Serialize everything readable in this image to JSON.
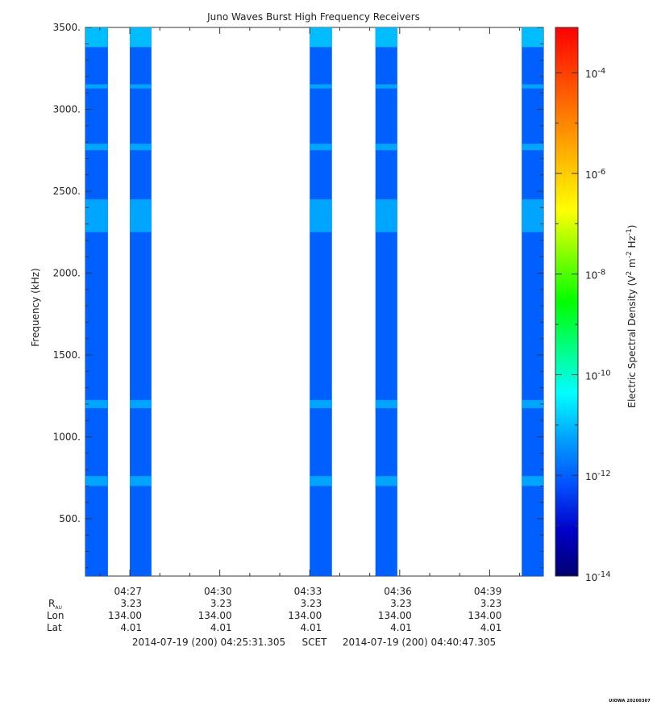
{
  "chart_data": {
    "type": "heatmap",
    "title": "Juno Waves Burst High Frequency Receivers",
    "ylabel": "Frequency (kHz)",
    "ylim": [
      150,
      3500
    ],
    "yticks": [
      500,
      1000,
      1500,
      2000,
      2500,
      3000,
      3500
    ],
    "ytick_labels": [
      "500.",
      "1000.",
      "1500.",
      "2000.",
      "2500.",
      "3000.",
      "3500."
    ],
    "xrange_minutes": [
      0,
      15.27
    ],
    "xticks": [
      {
        "t": 1.48,
        "label": "04:27",
        "rau": "3.23",
        "lon": "134.00",
        "lat": "4.01"
      },
      {
        "t": 4.48,
        "label": "04:30",
        "rau": "3.23",
        "lon": "134.00",
        "lat": "4.01"
      },
      {
        "t": 7.48,
        "label": "04:33",
        "rau": "3.23",
        "lon": "134.00",
        "lat": "4.01"
      },
      {
        "t": 10.48,
        "label": "04:36",
        "rau": "3.23",
        "lon": "134.00",
        "lat": "4.01"
      },
      {
        "t": 13.48,
        "label": "04:39",
        "rau": "3.23",
        "lon": "134.00",
        "lat": "4.01"
      }
    ],
    "row_labels": {
      "rau": "R",
      "rau_sub": "AU",
      "lon": "Lon",
      "lat": "Lat"
    },
    "time_start": "2014-07-19 (200) 04:25:31.305",
    "time_scale": "SCET",
    "time_end": "2014-07-19 (200) 04:40:47.305",
    "bursts_minutes": [
      [
        0.0,
        0.75
      ],
      [
        1.48,
        2.2
      ],
      [
        7.48,
        8.22
      ],
      [
        9.67,
        10.4
      ],
      [
        14.55,
        15.27
      ]
    ],
    "spectral_level_log10": -12,
    "bright_bands_khz": [
      {
        "center": 3140,
        "width": 25
      },
      {
        "center": 2770,
        "width": 40
      },
      {
        "center": 2350,
        "width": 200
      },
      {
        "center": 1200,
        "width": 50
      },
      {
        "center": 730,
        "width": 60
      }
    ],
    "colorbar": {
      "label": "Electric Spectral Density (V",
      "label_sup1": "2",
      "label_mid": " m",
      "label_sup2": "-2",
      "label_mid2": " Hz",
      "label_sup3": "-1",
      "label_end": ")",
      "range_log10": [
        -14,
        -3.1
      ],
      "ticks": [
        {
          "value": -4,
          "base": "10",
          "exp": "-4"
        },
        {
          "value": -6,
          "base": "10",
          "exp": "-6"
        },
        {
          "value": -8,
          "base": "10",
          "exp": "-8"
        },
        {
          "value": -10,
          "base": "10",
          "exp": "-10"
        },
        {
          "value": -12,
          "base": "10",
          "exp": "-12"
        },
        {
          "value": -14,
          "base": "10",
          "exp": "-14"
        }
      ],
      "colors": [
        "#000070",
        "#0000c8",
        "#0050ff",
        "#00a0ff",
        "#00ffff",
        "#00ff80",
        "#00ff00",
        "#80ff00",
        "#ffff00",
        "#ffc000",
        "#ff8000",
        "#ff4000",
        "#ff0000"
      ]
    },
    "grid": false,
    "legend": "colorbar-right"
  },
  "footer_stamp": "UIOWA 20200307"
}
